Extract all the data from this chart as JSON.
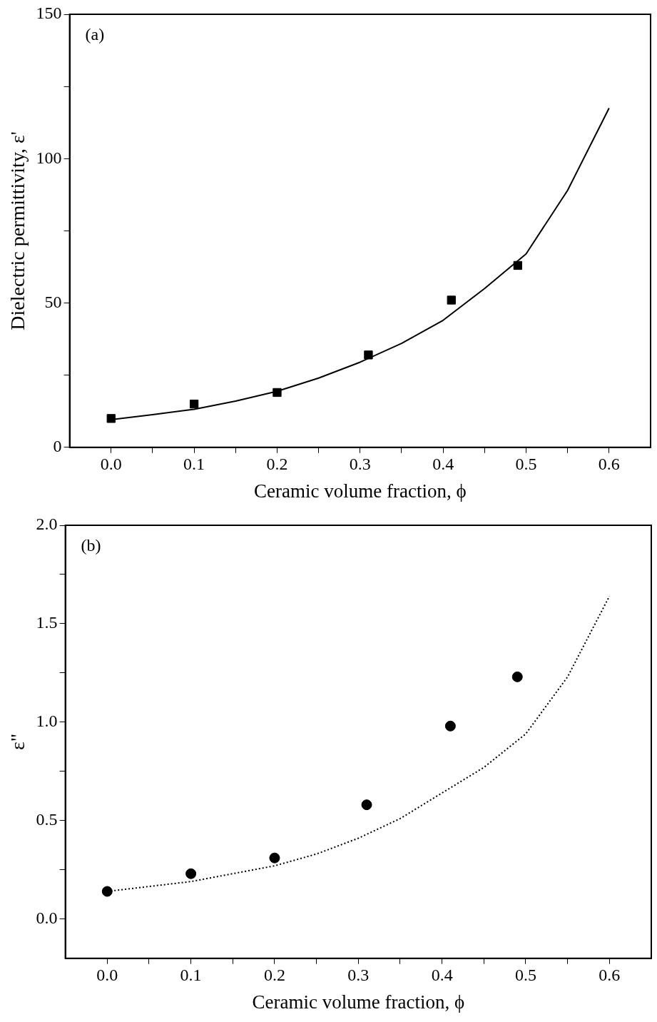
{
  "chart_data": [
    {
      "type": "scatter",
      "xlabel": "Ceramic volume fraction, ϕ",
      "ylabel": "Dielectric permittivity, ε'",
      "annotations": [
        "(a)"
      ],
      "xlim": [
        -0.05,
        0.65
      ],
      "ylim": [
        0,
        150
      ],
      "xticks": [
        {
          "value": 0,
          "label": "0.0"
        },
        {
          "value": 0.05,
          "label": null
        },
        {
          "value": 0.1,
          "label": "0.1"
        },
        {
          "value": 0.15,
          "label": null
        },
        {
          "value": 0.2,
          "label": "0.2"
        },
        {
          "value": 0.25,
          "label": null
        },
        {
          "value": 0.3,
          "label": "0.3"
        },
        {
          "value": 0.35,
          "label": null
        },
        {
          "value": 0.4,
          "label": "0.4"
        },
        {
          "value": 0.45,
          "label": null
        },
        {
          "value": 0.5,
          "label": "0.5"
        },
        {
          "value": 0.55,
          "label": null
        },
        {
          "value": 0.6,
          "label": "0.6"
        }
      ],
      "yticks": [
        0,
        {
          "value": 25,
          "label": null
        },
        50,
        {
          "value": 75,
          "label": null
        },
        100,
        {
          "value": 125,
          "label": null
        },
        150
      ],
      "grid": false,
      "legend": false,
      "series": [
        {
          "type": "scatter",
          "marker": "square",
          "color": "#000000",
          "x": [
            0,
            0.1,
            0.2,
            0.31,
            0.41,
            0.49
          ],
          "values": [
            10,
            15,
            19,
            32,
            51,
            63
          ]
        },
        {
          "type": "line",
          "marker": "none",
          "line_style": "solid",
          "color": "#000000",
          "x": [
            0,
            0.05,
            0.1,
            0.15,
            0.2,
            0.25,
            0.3,
            0.35,
            0.4,
            0.45,
            0.5,
            0.55,
            0.6
          ],
          "values": [
            9.6,
            11.3,
            13.2,
            16,
            19.4,
            24,
            29.5,
            36,
            44,
            55,
            67,
            89,
            117.5
          ]
        }
      ]
    },
    {
      "type": "scatter",
      "xlabel": "Ceramic volume fraction, ϕ",
      "ylabel": "ε\"",
      "annotations": [
        "(b)"
      ],
      "xlim": [
        -0.05,
        0.65
      ],
      "ylim": [
        -0.2,
        2.0
      ],
      "xticks": [
        {
          "value": 0,
          "label": "0.0"
        },
        {
          "value": 0.05,
          "label": null
        },
        {
          "value": 0.1,
          "label": "0.1"
        },
        {
          "value": 0.15,
          "label": null
        },
        {
          "value": 0.2,
          "label": "0.2"
        },
        {
          "value": 0.25,
          "label": null
        },
        {
          "value": 0.3,
          "label": "0.3"
        },
        {
          "value": 0.35,
          "label": null
        },
        {
          "value": 0.4,
          "label": "0.4"
        },
        {
          "value": 0.45,
          "label": null
        },
        {
          "value": 0.5,
          "label": "0.5"
        },
        {
          "value": 0.55,
          "label": null
        },
        {
          "value": 0.6,
          "label": "0.6"
        }
      ],
      "yticks": [
        {
          "value": 0,
          "label": "0.0"
        },
        {
          "value": 0.25,
          "label": null
        },
        {
          "value": 0.5,
          "label": "0.5"
        },
        {
          "value": 0.75,
          "label": null
        },
        {
          "value": 1.0,
          "label": "1.0"
        },
        {
          "value": 1.25,
          "label": null
        },
        {
          "value": 1.5,
          "label": "1.5"
        },
        {
          "value": 1.75,
          "label": null
        },
        {
          "value": 2.0,
          "label": "2.0"
        }
      ],
      "grid": false,
      "legend": false,
      "series": [
        {
          "type": "scatter",
          "marker": "circle",
          "color": "#000000",
          "x": [
            0,
            0.1,
            0.2,
            0.31,
            0.41,
            0.49
          ],
          "values": [
            0.14,
            0.23,
            0.31,
            0.58,
            0.98,
            1.23
          ]
        },
        {
          "type": "line",
          "marker": "none",
          "line_style": "dotted",
          "color": "#000000",
          "x": [
            0,
            0.05,
            0.1,
            0.15,
            0.2,
            0.25,
            0.3,
            0.35,
            0.4,
            0.45,
            0.5,
            0.55,
            0.6
          ],
          "values": [
            0.14,
            0.165,
            0.19,
            0.23,
            0.27,
            0.33,
            0.41,
            0.51,
            0.64,
            0.77,
            0.94,
            1.23,
            1.64
          ]
        }
      ]
    }
  ]
}
